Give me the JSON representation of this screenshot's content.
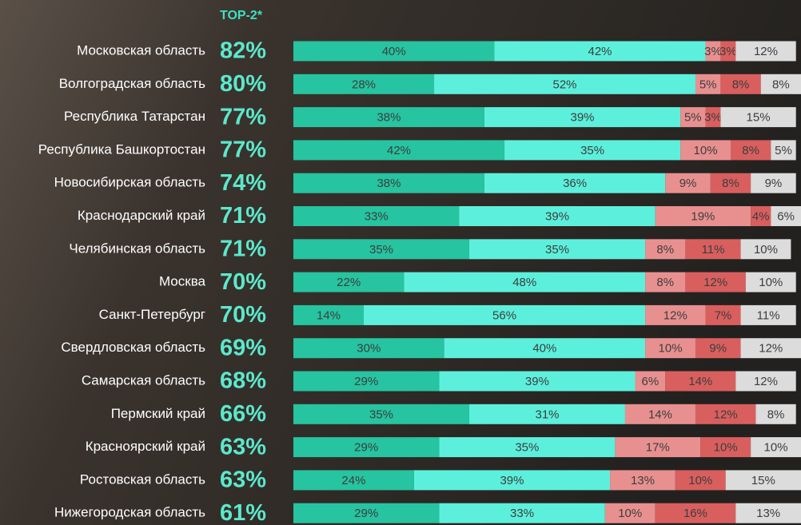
{
  "chart_data": {
    "type": "stacked-bar",
    "categories": [
      "Московская область",
      "Волгоградская область",
      "Республика Татарстан",
      "Республика Башкортостан",
      "Новосибирская область",
      "Краснодарский край",
      "Челябинская область",
      "Москва",
      "Санкт-Петербург",
      "Свердловская область",
      "Самарская область",
      "Пермский край",
      "Красноярский край",
      "Ростовская область",
      "Нижегородская область"
    ],
    "top2": {
      "name": "TOP-2*",
      "color": "#5ce8cc",
      "values": [
        82,
        80,
        77,
        77,
        74,
        71,
        71,
        70,
        70,
        69,
        68,
        66,
        63,
        63,
        61
      ],
      "value_labels": [
        "82%",
        "80%",
        "77%",
        "77%",
        "74%",
        "71%",
        "71%",
        "70%",
        "70%",
        "69%",
        "68%",
        "66%",
        "63%",
        "63%",
        "61%"
      ]
    },
    "xlim": [
      0,
      101
    ],
    "series": [
      {
        "color": "#26c4a0",
        "values": [
          40,
          28,
          38,
          42,
          38,
          33,
          35,
          22,
          14,
          30,
          29,
          35,
          29,
          24,
          29
        ],
        "value_labels": [
          "40%",
          "28%",
          "38%",
          "42%",
          "38%",
          "33%",
          "35%",
          "22%",
          "14%",
          "30%",
          "29%",
          "35%",
          "29%",
          "24%",
          "29%"
        ]
      },
      {
        "color": "#5cf0dc",
        "values": [
          42,
          52,
          39,
          35,
          36,
          39,
          35,
          48,
          56,
          40,
          39,
          31,
          35,
          39,
          33
        ],
        "value_labels": [
          "42%",
          "52%",
          "39%",
          "35%",
          "36%",
          "39%",
          "35%",
          "48%",
          "56%",
          "40%",
          "39%",
          "31%",
          "35%",
          "39%",
          "33%"
        ]
      },
      {
        "color": "#e89090",
        "values": [
          3,
          5,
          5,
          10,
          9,
          19,
          8,
          8,
          12,
          10,
          6,
          14,
          17,
          13,
          10
        ],
        "value_labels": [
          "3%",
          "5%",
          "5%",
          "10%",
          "9%",
          "19%",
          "8%",
          "8%",
          "12%",
          "10%",
          "6%",
          "14%",
          "17%",
          "13%",
          "10%"
        ]
      },
      {
        "color": "#d95f5f",
        "values": [
          3,
          8,
          3,
          8,
          8,
          4,
          11,
          12,
          7,
          9,
          14,
          12,
          10,
          10,
          16
        ],
        "value_labels": [
          "3%",
          "8%",
          "3%",
          "8%",
          "8%",
          "4%",
          "11%",
          "12%",
          "7%",
          "9%",
          "14%",
          "12%",
          "10%",
          "10%",
          "16%"
        ]
      },
      {
        "color": "#dcdcdc",
        "values": [
          12,
          8,
          15,
          5,
          9,
          6,
          10,
          10,
          11,
          12,
          12,
          8,
          10,
          15,
          13
        ],
        "value_labels": [
          "12%",
          "8%",
          "15%",
          "5%",
          "9%",
          "6%",
          "10%",
          "10%",
          "11%",
          "12%",
          "12%",
          "8%",
          "10%",
          "15%",
          "13%"
        ]
      }
    ]
  }
}
